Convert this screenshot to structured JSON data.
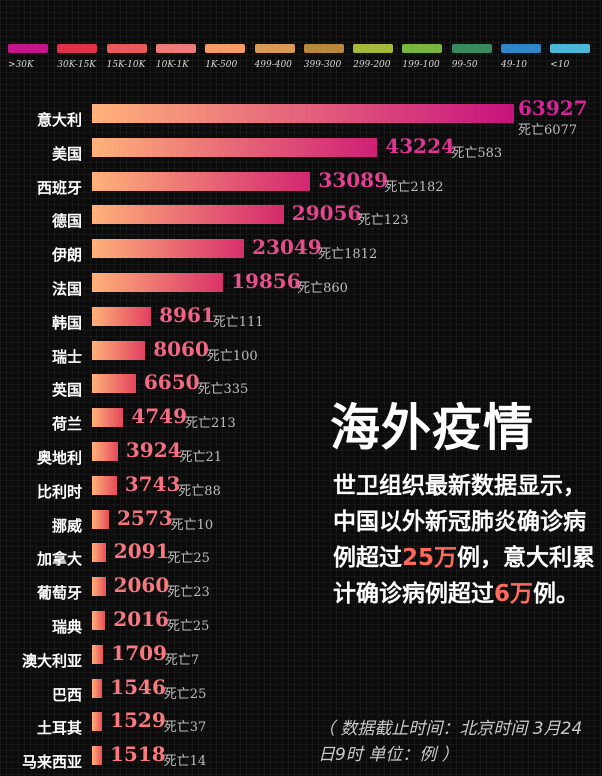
{
  "legend": [
    {
      "label": ">30K",
      "color": "#c4158b"
    },
    {
      "label": "30K-15K",
      "color": "#e0304a"
    },
    {
      "label": "15K-10K",
      "color": "#e95a5a"
    },
    {
      "label": "10K-1K",
      "color": "#f07a7a"
    },
    {
      "label": "1K-500",
      "color": "#f79b66"
    },
    {
      "label": "499-400",
      "color": "#d99a55"
    },
    {
      "label": "399-300",
      "color": "#b8893a"
    },
    {
      "label": "299-200",
      "color": "#a8b83a"
    },
    {
      "label": "199-100",
      "color": "#7ab540"
    },
    {
      "label": "99-50",
      "color": "#3a8a60"
    },
    {
      "label": "49-10",
      "color": "#2f86c8"
    },
    {
      "label": "<10",
      "color": "#4cb8d8"
    }
  ],
  "chart_data": {
    "type": "bar",
    "orientation": "horizontal",
    "categories": [
      "意大利",
      "美国",
      "西班牙",
      "德国",
      "伊朗",
      "法国",
      "韩国",
      "瑞士",
      "英国",
      "荷兰",
      "奥地利",
      "比利时",
      "挪威",
      "加拿大",
      "葡萄牙",
      "瑞典",
      "澳大利亚",
      "巴西",
      "土耳其",
      "马来西亚"
    ],
    "values": [
      63927,
      43224,
      33089,
      29056,
      23049,
      19856,
      8961,
      8060,
      6650,
      4749,
      3924,
      3743,
      2573,
      2091,
      2060,
      2016,
      1709,
      1546,
      1529,
      1518
    ],
    "deaths": [
      6077,
      583,
      2182,
      123,
      1812,
      860,
      111,
      100,
      335,
      213,
      21,
      88,
      10,
      25,
      23,
      25,
      7,
      25,
      37,
      14
    ],
    "death_prefix": "死亡",
    "colors": {
      "bar_start": "#ffb27a",
      "bar_high": "#c8127e",
      "bar_low": "#f05a4e",
      "value_high": "#d8239a",
      "value_low": "#ff8a7a"
    }
  },
  "headline": "海外疫情",
  "body": {
    "part1": "世卫组织最新数据显示，中国以外新冠肺炎确诊病例超过",
    "num1": "25万",
    "part2": "例，意大利累计确诊病例超过",
    "num2": "6万",
    "part3": "例。"
  },
  "footnote": "（ 数据截止时间：北京时间 3月24日9时  单位：例 ）"
}
